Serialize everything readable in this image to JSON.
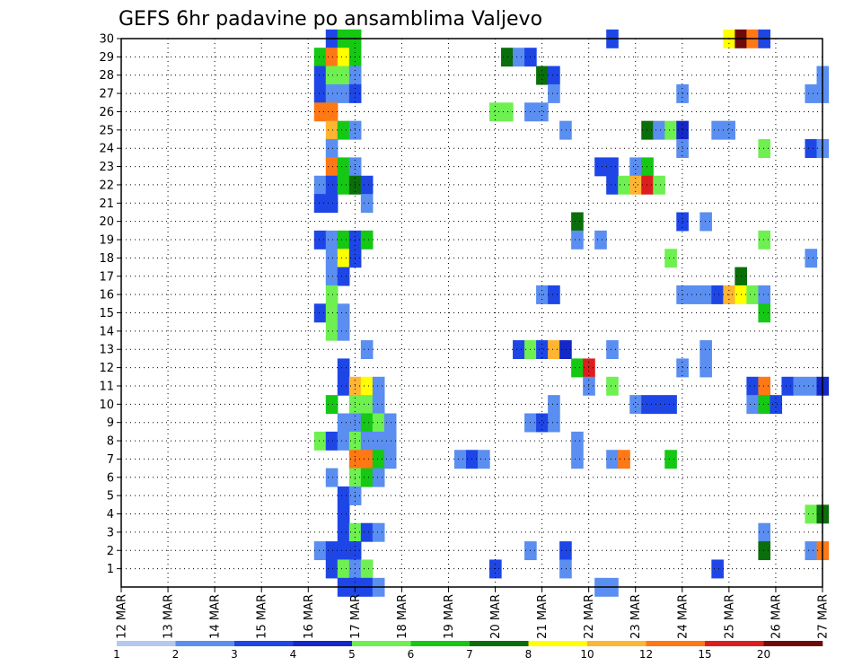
{
  "chart_data": {
    "type": "heatmap",
    "title": "GEFS 6hr padavine po ansamblima Valjevo",
    "xlabel": "",
    "ylabel": "",
    "x_ticks": [
      "12 MAR",
      "13 MAR",
      "14 MAR",
      "15 MAR",
      "16 MAR",
      "17 MAR",
      "18 MAR",
      "19 MAR",
      "20 MAR",
      "21 MAR",
      "22 MAR",
      "23 MAR",
      "24 MAR",
      "25 MAR",
      "26 MAR",
      "27 MAR"
    ],
    "x_range_days": [
      12,
      27
    ],
    "time_step_hours": 6,
    "y_ticks": [
      1,
      2,
      3,
      4,
      5,
      6,
      7,
      8,
      9,
      10,
      11,
      12,
      13,
      14,
      15,
      16,
      17,
      18,
      19,
      20,
      21,
      22,
      23,
      24,
      25,
      26,
      27,
      28,
      29,
      30
    ],
    "y_range": [
      0,
      30
    ],
    "grid": "dotted",
    "colorbar": {
      "labels": [
        "1",
        "2",
        "3",
        "4",
        "5",
        "6",
        "7",
        "8",
        "10",
        "12",
        "15",
        "20"
      ],
      "colors": [
        "#b4c8f0",
        "#5a8ef0",
        "#1e46e6",
        "#1428c8",
        "#6ef050",
        "#14c814",
        "#0a6e0a",
        "#ffff00",
        "#ffb432",
        "#ff7814",
        "#dc1e1e",
        "#6e0a0a"
      ]
    },
    "cells": [
      [
        30,
        16.5,
        2
      ],
      [
        30,
        16.75,
        5
      ],
      [
        30,
        17.0,
        5
      ],
      [
        30,
        22.5,
        2
      ],
      [
        30,
        25.0,
        7
      ],
      [
        30,
        25.25,
        11
      ],
      [
        30,
        25.5,
        9
      ],
      [
        30,
        25.75,
        2
      ],
      [
        29,
        16.25,
        5
      ],
      [
        29,
        16.5,
        9
      ],
      [
        29,
        16.75,
        7
      ],
      [
        29,
        17.0,
        5
      ],
      [
        29,
        20.25,
        6
      ],
      [
        29,
        20.5,
        1
      ],
      [
        29,
        20.75,
        2
      ],
      [
        28,
        16.25,
        2
      ],
      [
        28,
        16.5,
        4
      ],
      [
        28,
        16.75,
        4
      ],
      [
        28,
        17.0,
        1
      ],
      [
        28,
        21.0,
        6
      ],
      [
        28,
        21.25,
        2
      ],
      [
        28,
        27.0,
        1
      ],
      [
        27,
        16.25,
        2
      ],
      [
        27,
        16.5,
        1
      ],
      [
        27,
        16.75,
        1
      ],
      [
        27,
        17.0,
        2
      ],
      [
        27,
        21.25,
        1
      ],
      [
        27,
        24.0,
        1
      ],
      [
        27,
        26.75,
        1
      ],
      [
        27,
        27.0,
        1
      ],
      [
        26,
        16.25,
        9
      ],
      [
        26,
        16.5,
        9
      ],
      [
        26,
        20.0,
        4
      ],
      [
        26,
        20.25,
        4
      ],
      [
        26,
        20.75,
        1
      ],
      [
        26,
        21.0,
        1
      ],
      [
        25,
        16.5,
        8
      ],
      [
        25,
        16.75,
        5
      ],
      [
        25,
        17.0,
        1
      ],
      [
        25,
        21.5,
        1
      ],
      [
        25,
        23.25,
        6
      ],
      [
        25,
        23.5,
        1
      ],
      [
        25,
        23.75,
        4
      ],
      [
        25,
        24.0,
        3
      ],
      [
        25,
        24.75,
        1
      ],
      [
        25,
        25.0,
        1
      ],
      [
        24,
        16.5,
        1
      ],
      [
        24,
        24.0,
        1
      ],
      [
        24,
        25.75,
        4
      ],
      [
        24,
        26.75,
        2
      ],
      [
        24,
        27.0,
        1
      ],
      [
        23,
        16.5,
        9
      ],
      [
        23,
        16.75,
        5
      ],
      [
        23,
        17.0,
        1
      ],
      [
        23,
        22.25,
        2
      ],
      [
        23,
        22.5,
        2
      ],
      [
        23,
        23.0,
        1
      ],
      [
        23,
        23.25,
        5
      ],
      [
        22,
        16.25,
        1
      ],
      [
        22,
        16.5,
        2
      ],
      [
        22,
        16.75,
        5
      ],
      [
        22,
        17.0,
        6
      ],
      [
        22,
        17.25,
        2
      ],
      [
        22,
        22.5,
        2
      ],
      [
        22,
        22.75,
        4
      ],
      [
        22,
        23.0,
        8
      ],
      [
        22,
        23.25,
        10
      ],
      [
        22,
        23.5,
        4
      ],
      [
        21,
        16.25,
        2
      ],
      [
        21,
        16.5,
        2
      ],
      [
        21,
        17.25,
        1
      ],
      [
        20,
        21.75,
        6
      ],
      [
        20,
        24.0,
        2
      ],
      [
        20,
        24.5,
        1
      ],
      [
        19,
        16.25,
        2
      ],
      [
        19,
        16.5,
        1
      ],
      [
        19,
        16.75,
        5
      ],
      [
        19,
        17.0,
        2
      ],
      [
        19,
        17.25,
        5
      ],
      [
        19,
        21.75,
        1
      ],
      [
        19,
        22.25,
        1
      ],
      [
        19,
        25.75,
        4
      ],
      [
        18,
        16.5,
        1
      ],
      [
        18,
        16.75,
        7
      ],
      [
        18,
        17.0,
        2
      ],
      [
        18,
        23.75,
        4
      ],
      [
        18,
        26.75,
        1
      ],
      [
        17,
        16.5,
        1
      ],
      [
        17,
        16.75,
        2
      ],
      [
        17,
        25.25,
        6
      ],
      [
        16,
        16.5,
        4
      ],
      [
        16,
        21.0,
        1
      ],
      [
        16,
        21.25,
        2
      ],
      [
        16,
        24.0,
        1
      ],
      [
        16,
        24.25,
        1
      ],
      [
        16,
        24.5,
        1
      ],
      [
        16,
        24.75,
        2
      ],
      [
        16,
        25.0,
        8
      ],
      [
        16,
        25.25,
        7
      ],
      [
        16,
        25.5,
        4
      ],
      [
        16,
        25.75,
        1
      ],
      [
        15,
        16.25,
        2
      ],
      [
        15,
        16.5,
        4
      ],
      [
        15,
        16.75,
        1
      ],
      [
        15,
        25.75,
        5
      ],
      [
        14,
        16.5,
        4
      ],
      [
        14,
        16.75,
        1
      ],
      [
        13,
        17.25,
        1
      ],
      [
        13,
        20.5,
        2
      ],
      [
        13,
        20.75,
        4
      ],
      [
        13,
        21.0,
        2
      ],
      [
        13,
        21.25,
        8
      ],
      [
        13,
        21.5,
        3
      ],
      [
        13,
        22.5,
        1
      ],
      [
        13,
        24.5,
        1
      ],
      [
        12,
        16.75,
        2
      ],
      [
        12,
        21.75,
        5
      ],
      [
        12,
        22.0,
        10
      ],
      [
        12,
        24.0,
        1
      ],
      [
        12,
        24.5,
        1
      ],
      [
        11,
        16.75,
        2
      ],
      [
        11,
        17.0,
        8
      ],
      [
        11,
        17.25,
        7
      ],
      [
        11,
        17.5,
        1
      ],
      [
        11,
        22.0,
        1
      ],
      [
        11,
        22.5,
        4
      ],
      [
        11,
        25.5,
        2
      ],
      [
        11,
        25.75,
        9
      ],
      [
        11,
        26.25,
        2
      ],
      [
        11,
        26.5,
        1
      ],
      [
        11,
        26.75,
        1
      ],
      [
        11,
        27.0,
        3
      ],
      [
        10,
        16.5,
        5
      ],
      [
        10,
        17.0,
        4
      ],
      [
        10,
        17.25,
        4
      ],
      [
        10,
        17.5,
        1
      ],
      [
        10,
        21.25,
        1
      ],
      [
        10,
        23.0,
        1
      ],
      [
        10,
        23.25,
        2
      ],
      [
        10,
        23.5,
        2
      ],
      [
        10,
        23.75,
        2
      ],
      [
        10,
        25.5,
        1
      ],
      [
        10,
        25.75,
        5
      ],
      [
        10,
        26.0,
        2
      ],
      [
        9,
        16.75,
        1
      ],
      [
        9,
        17.0,
        1
      ],
      [
        9,
        17.25,
        5
      ],
      [
        9,
        17.5,
        4
      ],
      [
        9,
        17.75,
        1
      ],
      [
        9,
        20.75,
        1
      ],
      [
        9,
        21.0,
        2
      ],
      [
        9,
        21.25,
        1
      ],
      [
        8,
        16.25,
        4
      ],
      [
        8,
        16.5,
        2
      ],
      [
        8,
        16.75,
        1
      ],
      [
        8,
        17.0,
        4
      ],
      [
        8,
        17.25,
        1
      ],
      [
        8,
        17.5,
        1
      ],
      [
        8,
        17.75,
        1
      ],
      [
        8,
        21.75,
        1
      ],
      [
        7,
        17.0,
        9
      ],
      [
        7,
        17.25,
        9
      ],
      [
        7,
        17.5,
        5
      ],
      [
        7,
        17.75,
        1
      ],
      [
        7,
        19.25,
        1
      ],
      [
        7,
        19.5,
        2
      ],
      [
        7,
        19.75,
        1
      ],
      [
        7,
        21.75,
        1
      ],
      [
        7,
        22.5,
        1
      ],
      [
        7,
        22.75,
        9
      ],
      [
        7,
        23.75,
        5
      ],
      [
        6,
        16.5,
        1
      ],
      [
        6,
        17.0,
        4
      ],
      [
        6,
        17.25,
        5
      ],
      [
        6,
        17.5,
        1
      ],
      [
        5,
        16.75,
        2
      ],
      [
        5,
        17.0,
        1
      ],
      [
        4,
        16.75,
        2
      ],
      [
        4,
        26.75,
        4
      ],
      [
        4,
        27.0,
        6
      ],
      [
        3,
        16.75,
        2
      ],
      [
        3,
        17.0,
        4
      ],
      [
        3,
        17.25,
        2
      ],
      [
        3,
        17.5,
        1
      ],
      [
        3,
        25.75,
        1
      ],
      [
        2,
        16.25,
        1
      ],
      [
        2,
        16.5,
        2
      ],
      [
        2,
        16.75,
        2
      ],
      [
        2,
        17.0,
        2
      ],
      [
        2,
        20.75,
        1
      ],
      [
        2,
        21.5,
        2
      ],
      [
        2,
        25.75,
        6
      ],
      [
        2,
        26.75,
        1
      ],
      [
        2,
        27.0,
        9
      ],
      [
        1,
        16.5,
        2
      ],
      [
        1,
        16.75,
        4
      ],
      [
        1,
        17.0,
        1
      ],
      [
        1,
        17.25,
        4
      ],
      [
        1,
        20.0,
        2
      ],
      [
        1,
        21.5,
        1
      ],
      [
        1,
        24.75,
        2
      ],
      [
        0,
        16.75,
        2
      ],
      [
        0,
        17.0,
        2
      ],
      [
        0,
        17.25,
        2
      ],
      [
        0,
        17.5,
        1
      ],
      [
        0,
        22.25,
        1
      ],
      [
        0,
        22.5,
        1
      ]
    ]
  }
}
